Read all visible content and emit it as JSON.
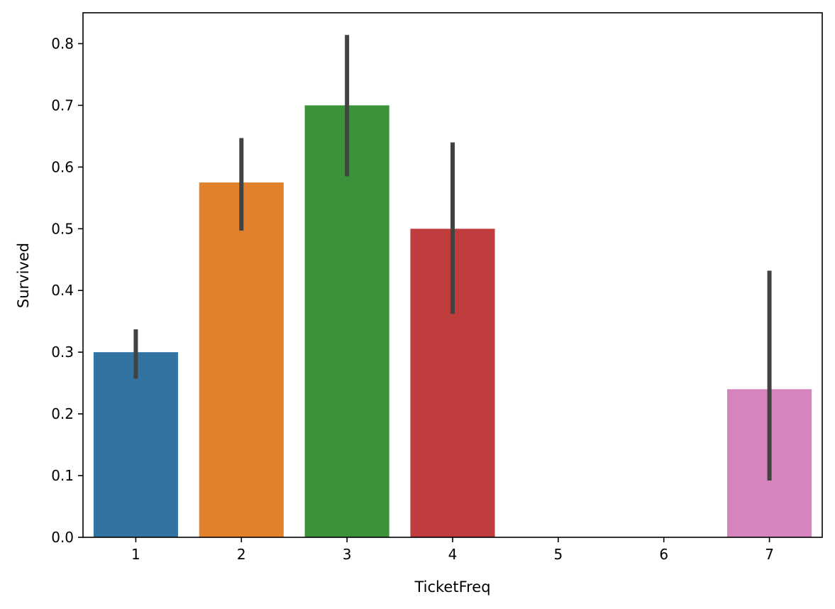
{
  "chart_data": {
    "type": "bar",
    "title": "",
    "xlabel": "TicketFreq",
    "ylabel": "Survived",
    "categories": [
      "1",
      "2",
      "3",
      "4",
      "5",
      "6",
      "7"
    ],
    "values": [
      0.3,
      0.575,
      0.7,
      0.5,
      0.0,
      0.0,
      0.24
    ],
    "error_low": [
      0.257,
      0.497,
      0.585,
      0.362,
      null,
      null,
      0.092
    ],
    "error_high": [
      0.337,
      0.647,
      0.814,
      0.64,
      null,
      null,
      0.432
    ],
    "colors": [
      "#3274a1",
      "#e1812c",
      "#3a923a",
      "#c03d3e",
      "#9372b2",
      "#845b53",
      "#d684bd"
    ],
    "error_color": "#424242",
    "ylim": [
      0,
      0.85
    ],
    "yticks": [
      0.0,
      0.1,
      0.2,
      0.3,
      0.4,
      0.5,
      0.6,
      0.7,
      0.8
    ],
    "ytick_labels": [
      "0.0",
      "0.1",
      "0.2",
      "0.3",
      "0.4",
      "0.5",
      "0.6",
      "0.7",
      "0.8"
    ],
    "grid": false,
    "legend": "none"
  }
}
